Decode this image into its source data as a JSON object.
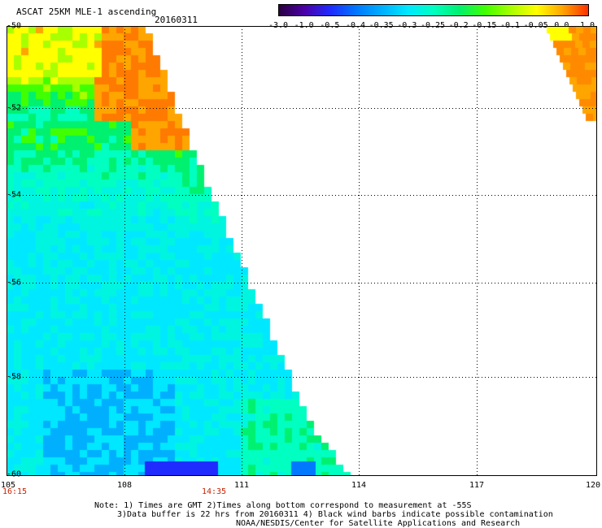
{
  "header": {
    "title": "ASCAT 25KM MLE-1 ascending",
    "date": "20160311"
  },
  "colorbar": {
    "labels": [
      "-3.0",
      "-1.0",
      "-0.5",
      "-0.4",
      "-0.35",
      "-0.3",
      "-0.25",
      "-0.2",
      "-0.15",
      "-0.1",
      "-0.05",
      "0.0",
      "1.0"
    ],
    "colors": [
      "#2a0040",
      "#4b00a8",
      "#1f2bff",
      "#0078ff",
      "#00b0ff",
      "#00e8ff",
      "#00ffc0",
      "#00f070",
      "#40ff00",
      "#a8ff00",
      "#ffff00",
      "#ffa500",
      "#ff3000"
    ]
  },
  "map": {
    "lat_labels": [
      "-50",
      "-52",
      "-54",
      "-56",
      "-58",
      "-60"
    ],
    "lon_labels": [
      "105",
      "108",
      "111",
      "114",
      "117",
      "120"
    ],
    "time_labels": [
      "16:15",
      "14:35"
    ]
  },
  "notes": [
    "Note: 1) Times are GMT 2)Times along bottom correspond to measurement at -55S",
    "3)Data buffer is 22 hrs from 20160311 4) Black wind barbs indicate possible contamination",
    "NOAA/NESDIS/Center for Satellite Applications and Research"
  ]
}
